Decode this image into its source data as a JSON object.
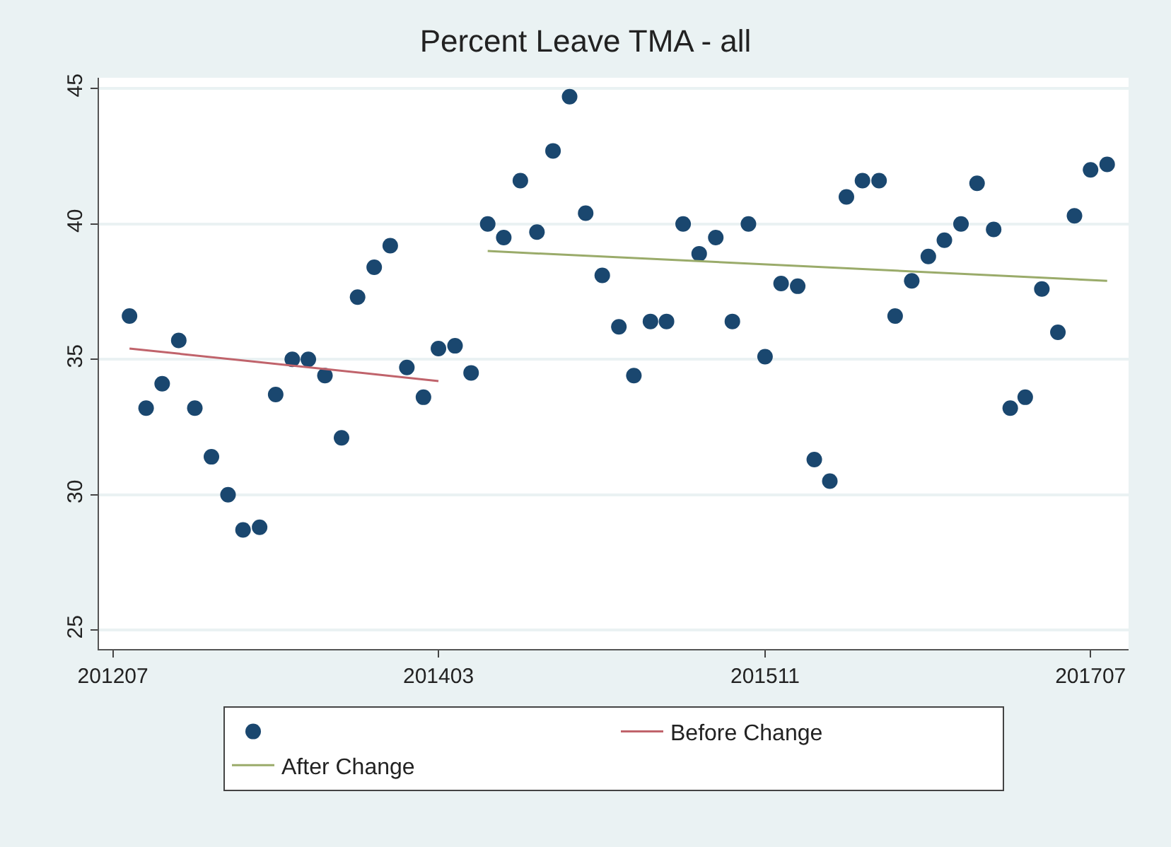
{
  "chart_data": {
    "type": "scatter",
    "title": "Percent Leave TMA - all",
    "series": [
      {
        "color": "#1a476f",
        "marker": "circle",
        "x": [
          "2012-08",
          "2012-09",
          "2012-10",
          "2012-11",
          "2012-12",
          "2013-01",
          "2013-02",
          "2013-03",
          "2013-04",
          "2013-05",
          "2013-06",
          "2013-07",
          "2013-08",
          "2013-09",
          "2013-10",
          "2013-11",
          "2013-12",
          "2014-01",
          "2014-02",
          "2014-03",
          "2014-04",
          "2014-05",
          "2014-06",
          "2014-07",
          "2014-08",
          "2014-09",
          "2014-10",
          "2014-11",
          "2014-12",
          "2015-01",
          "2015-02",
          "2015-03",
          "2015-04",
          "2015-05",
          "2015-06",
          "2015-07",
          "2015-08",
          "2015-09",
          "2015-10",
          "2015-11",
          "2015-12",
          "2016-01",
          "2016-02",
          "2016-03",
          "2016-04",
          "2016-05",
          "2016-06",
          "2016-07",
          "2016-08",
          "2016-09",
          "2016-10",
          "2016-11",
          "2016-12",
          "2017-01",
          "2017-02",
          "2017-03",
          "2017-04",
          "2017-05",
          "2017-06",
          "2017-07",
          "2017-08"
        ],
        "values": [
          36.6,
          33.2,
          34.1,
          35.7,
          33.2,
          31.4,
          30.0,
          28.7,
          28.8,
          33.7,
          35.0,
          35.0,
          34.4,
          32.1,
          37.3,
          38.4,
          39.2,
          34.7,
          33.6,
          35.4,
          35.5,
          34.5,
          40.0,
          39.5,
          41.6,
          39.7,
          42.7,
          44.7,
          40.4,
          38.1,
          36.2,
          34.4,
          36.4,
          36.4,
          40.0,
          38.9,
          39.5,
          36.4,
          40.0,
          35.1,
          37.8,
          37.7,
          31.3,
          30.5,
          41.0,
          41.6,
          41.6,
          36.6,
          37.9,
          38.8,
          39.4,
          40.0,
          41.5,
          39.8,
          33.2,
          33.6,
          37.6,
          36.0,
          40.3,
          42.0,
          42.2
        ]
      },
      {
        "type": "line",
        "name": "Before Change",
        "color": "#c0636b",
        "x": [
          "2012-08",
          "2014-03"
        ],
        "values": [
          35.4,
          34.2
        ]
      },
      {
        "type": "line",
        "name": "After Change",
        "color": "#9aab6a",
        "x": [
          "2014-06",
          "2017-08"
        ],
        "values": [
          39.0,
          37.9
        ]
      }
    ],
    "xlim": [
      "2012-06-05",
      "2017-09-10"
    ],
    "xticks": [
      {
        "value": "2012-07",
        "label": "201207"
      },
      {
        "value": "2014-03",
        "label": "201403"
      },
      {
        "value": "2015-11",
        "label": "201511"
      },
      {
        "value": "2017-07",
        "label": "201707"
      }
    ],
    "ylim": [
      24.3,
      45.4
    ],
    "yticks": [
      25,
      30,
      35,
      40,
      45
    ],
    "grid": "y",
    "legend": "bottom"
  }
}
